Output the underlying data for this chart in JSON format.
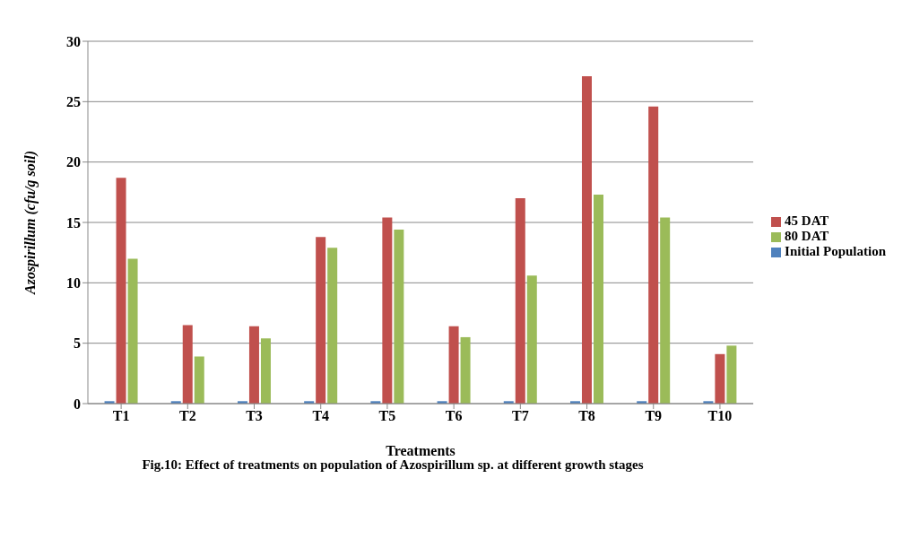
{
  "chart_data": {
    "type": "bar",
    "title": "Fig.10: Effect of treatments on population of Azospirillum sp. at different growth stages",
    "xlabel": "Treatments",
    "ylabel": "Azospirillum (cfu/g soil)",
    "categories": [
      "T1",
      "T2",
      "T3",
      "T4",
      "T5",
      "T6",
      "T7",
      "T8",
      "T9",
      "T10"
    ],
    "series": [
      {
        "name": "Initial Population",
        "color": "#4f81bd",
        "values": [
          0.2,
          0.2,
          0.2,
          0.2,
          0.2,
          0.2,
          0.2,
          0.2,
          0.2,
          0.2
        ]
      },
      {
        "name": "45  DAT",
        "color": "#c0504d",
        "values": [
          18.7,
          6.5,
          6.4,
          13.8,
          15.4,
          6.4,
          17.0,
          27.1,
          24.6,
          4.1
        ]
      },
      {
        "name": "80 DAT",
        "color": "#9bbb59",
        "values": [
          12.0,
          3.9,
          5.4,
          12.9,
          14.4,
          5.5,
          10.6,
          17.3,
          15.4,
          4.8
        ]
      }
    ],
    "ylim": [
      0,
      30
    ],
    "yticks": [
      0,
      5,
      10,
      15,
      20,
      25,
      30
    ],
    "grid": "y",
    "legend": "right"
  }
}
